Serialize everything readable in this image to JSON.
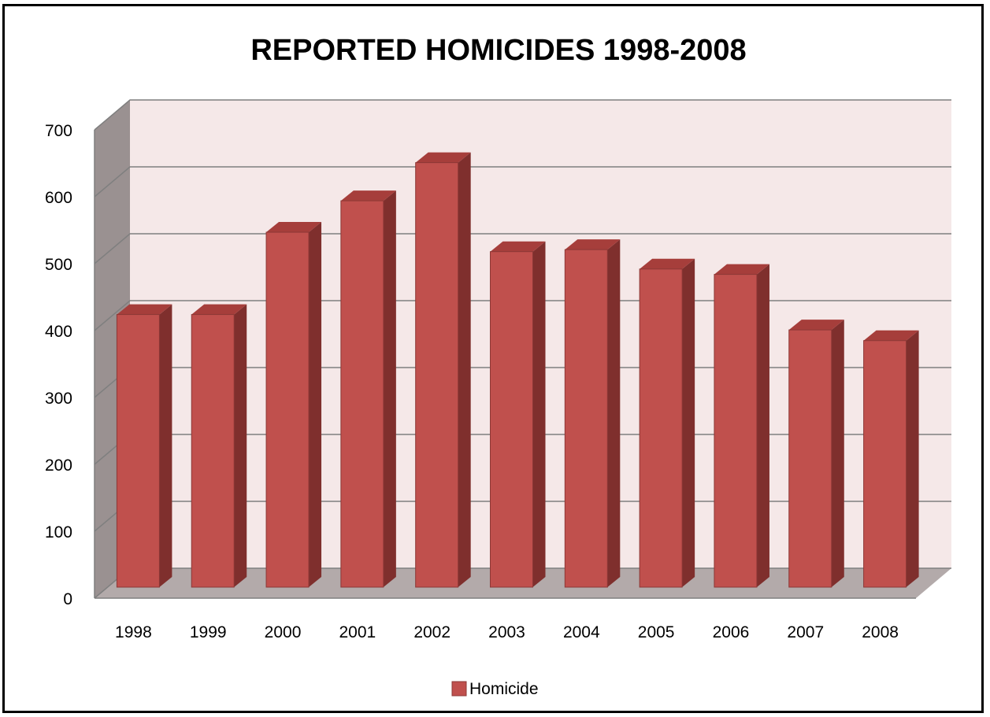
{
  "chart_data": {
    "type": "bar",
    "title": "REPORTED HOMICIDES 1998-2008",
    "categories": [
      "1998",
      "1999",
      "2000",
      "2001",
      "2002",
      "2003",
      "2004",
      "2005",
      "2006",
      "2007",
      "2008"
    ],
    "series": [
      {
        "name": "Homicide",
        "values": [
          424,
          424,
          547,
          594,
          651,
          518,
          521,
          492,
          484,
          401,
          385
        ]
      }
    ],
    "ylim": [
      0,
      700
    ],
    "yticks": [
      "0",
      "100",
      "200",
      "300",
      "400",
      "500",
      "600",
      "700"
    ],
    "xlabel": "",
    "ylabel": "",
    "grid": true,
    "legend_position": "bottom",
    "colors": {
      "bar_front": "#c0504d",
      "bar_side": "#7f2f2d",
      "bar_top": "#a63e3b",
      "back_wall": "#f5e8e8",
      "side_wall": "#9a9191",
      "floor": "#b3aaaa",
      "gridline": "#7f7f7f"
    }
  }
}
